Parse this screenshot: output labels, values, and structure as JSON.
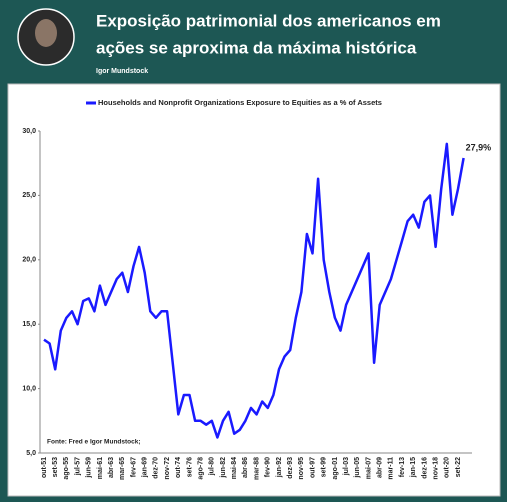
{
  "header": {
    "title": [
      "Exposição patrimonial dos americanos em",
      "ações se aproxima da máxima histórica"
    ],
    "author": "Igor Mundstock"
  },
  "chart_data": {
    "type": "line",
    "legend": "top",
    "annotation": "Fonte: Fred e Igor Mundstock;",
    "categories": [
      "out-51",
      null,
      "set-53",
      null,
      "ago-55",
      null,
      "jul-57",
      null,
      "jun-59",
      null,
      "mai-61",
      null,
      "abr-63",
      null,
      "mar-65",
      null,
      "fev-67",
      null,
      "jan-69",
      null,
      "dez-70",
      null,
      "nov-72",
      null,
      "out-74",
      null,
      "set-76",
      null,
      "ago-78",
      null,
      "jul-80",
      null,
      "jun-82",
      null,
      "mai-84",
      null,
      "abr-86",
      null,
      "mar-88",
      null,
      "fev-90",
      null,
      "jan-92",
      null,
      "dez-93",
      null,
      "nov-95",
      null,
      "out-97",
      null,
      "set-99",
      null,
      "ago-01",
      null,
      "jul-03",
      null,
      "jun-05",
      null,
      "mai-07",
      null,
      "abr-09",
      null,
      "mar-11",
      null,
      "fev-13",
      null,
      "jan-15",
      null,
      "dez-16",
      null,
      "nov-18",
      null,
      "out-20",
      null,
      "set-22",
      null
    ],
    "series": [
      {
        "name": "Households and Nonprofit Organizations Exposure to Equities as a % of Assets",
        "color": "#1a1aff",
        "values": [
          13.8,
          13.5,
          11.5,
          14.5,
          15.5,
          16,
          15,
          16.8,
          17,
          16,
          18,
          16.5,
          17.5,
          18.5,
          19,
          17.5,
          19.5,
          21,
          19,
          16,
          15.5,
          16,
          16,
          12,
          8,
          9.5,
          9.5,
          7.5,
          7.5,
          7.2,
          7.5,
          6.2,
          7.5,
          8.2,
          6.5,
          6.8,
          7.5,
          8.5,
          8,
          9,
          8.5,
          9.5,
          11.5,
          12.5,
          13,
          15.5,
          17.5,
          22,
          20.5,
          26.3,
          20,
          17.5,
          15.5,
          14.5,
          16.5,
          17.5,
          18.5,
          19.5,
          20.5,
          12,
          16.5,
          17.5,
          18.5,
          20,
          21.5,
          23,
          23.5,
          22.5,
          24.5,
          25,
          21,
          25.5,
          29,
          23.5,
          25.5,
          27.9
        ],
        "value_labels": [
          null,
          null,
          null,
          null,
          null,
          null,
          null,
          null,
          null,
          null,
          null,
          null,
          null,
          null,
          null,
          null,
          null,
          null,
          null,
          null,
          null,
          null,
          null,
          null,
          null,
          null,
          null,
          null,
          null,
          null,
          null,
          null,
          null,
          null,
          null,
          null,
          null,
          null,
          null,
          null,
          null,
          null,
          null,
          null,
          null,
          null,
          null,
          null,
          null,
          null,
          null,
          null,
          null,
          null,
          null,
          null,
          null,
          null,
          null,
          null,
          null,
          null,
          null,
          null,
          null,
          null,
          null,
          null,
          null,
          null,
          null,
          null,
          null,
          null,
          null,
          "27,9%"
        ]
      }
    ],
    "ylim": [
      5,
      30
    ],
    "yticks": [
      {
        "value": 5,
        "label": "5,0"
      },
      {
        "value": 10,
        "label": "10,0"
      },
      {
        "value": 15,
        "label": "15,0"
      },
      {
        "value": 20,
        "label": "20,0"
      },
      {
        "value": 25,
        "label": "25,0"
      },
      {
        "value": 30,
        "label": "30,0"
      }
    ],
    "grid": false
  }
}
